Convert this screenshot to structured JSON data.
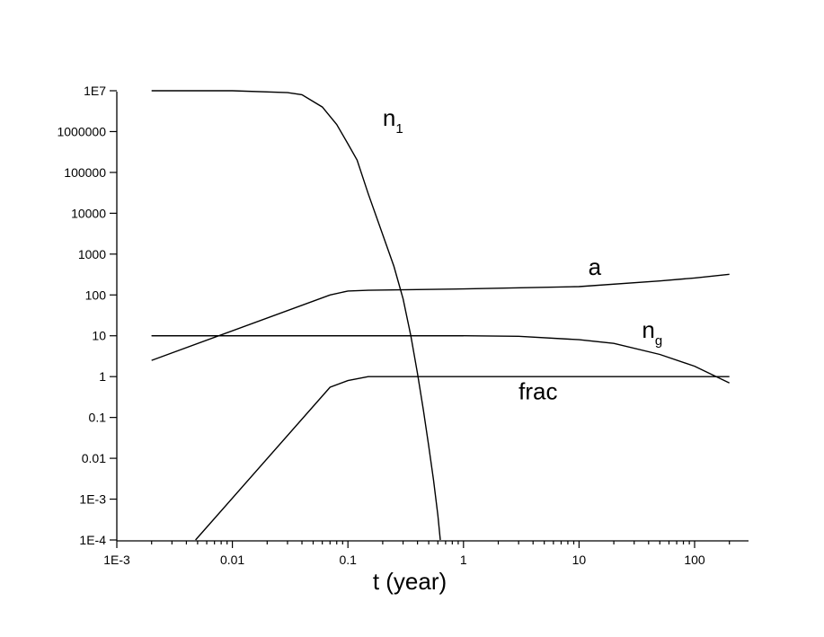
{
  "chart_data": {
    "type": "line",
    "title": "",
    "xlabel": "t (year)",
    "ylabel": "",
    "xscale": "log",
    "yscale": "log",
    "xlim": [
      0.001,
      200
    ],
    "ylim": [
      0.0001,
      10000000
    ],
    "grid": false,
    "legend": "none",
    "x_ticks": [
      "1E-3",
      "0.01",
      "0.1",
      "1",
      "10",
      "100"
    ],
    "y_ticks": [
      "1E-4",
      "1E-3",
      "0.01",
      "0.1",
      "1",
      "10",
      "100",
      "1000",
      "10000",
      "100000",
      "1000000",
      "1E7"
    ],
    "series": [
      {
        "name": "n_1",
        "label_main": "n",
        "label_sub": "1",
        "x": [
          0.002,
          0.01,
          0.03,
          0.04,
          0.06,
          0.08,
          0.1,
          0.12,
          0.15,
          0.2,
          0.25,
          0.3,
          0.35,
          0.4,
          0.45,
          0.5,
          0.55,
          0.6,
          0.63
        ],
        "y": [
          10000000,
          10000000,
          9000000,
          8000000,
          4000000,
          1500000,
          500000,
          200000,
          30000,
          3000,
          500,
          80,
          10,
          1.2,
          0.15,
          0.02,
          0.003,
          0.0004,
          0.0001
        ]
      },
      {
        "name": "a",
        "label_main": "a",
        "label_sub": "",
        "x": [
          0.002,
          0.07,
          0.1,
          0.15,
          1,
          10,
          50,
          100,
          200
        ],
        "y": [
          2.5,
          100,
          125,
          130,
          140,
          160,
          220,
          260,
          320
        ]
      },
      {
        "name": "n_g",
        "label_main": "n",
        "label_sub": "g",
        "x": [
          0.002,
          0.1,
          1,
          3,
          10,
          20,
          50,
          100,
          200
        ],
        "y": [
          10,
          10,
          10,
          9.7,
          8,
          6.5,
          3.5,
          1.8,
          0.7
        ]
      },
      {
        "name": "frac",
        "label_main": "frac",
        "label_sub": "",
        "x": [
          0.0048,
          0.07,
          0.1,
          0.15,
          0.2,
          1,
          200
        ],
        "y": [
          0.0001,
          0.55,
          0.8,
          1.0,
          1.0,
          1.0,
          1.0
        ]
      }
    ]
  }
}
